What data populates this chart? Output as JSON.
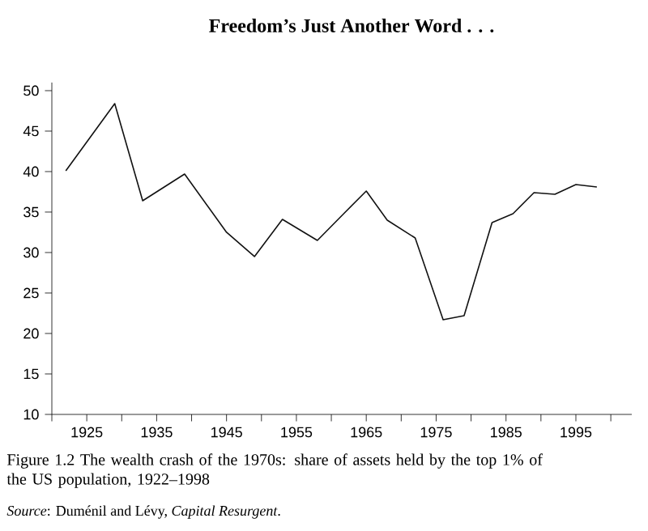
{
  "chart_data": {
    "type": "line",
    "title": "**Freedom’s Just Another Word . . .**",
    "x": [
      1922,
      1929,
      1933,
      1939,
      1945,
      1949,
      1953,
      1958,
      1962,
      1965,
      1968,
      1972,
      1976,
      1979,
      1983,
      1986,
      1989,
      1992,
      1995,
      1998
    ],
    "values": [
      40.1,
      48.4,
      36.4,
      39.7,
      32.5,
      29.5,
      34.1,
      31.5,
      35.0,
      37.6,
      34.0,
      31.8,
      21.7,
      22.2,
      33.7,
      34.8,
      37.4,
      37.2,
      38.4,
      38.1
    ],
    "color": "#111111",
    "line_style": "solid",
    "marker": "none",
    "grid": false,
    "xlim": [
      1920,
      2003
    ],
    "ylim": [
      10,
      51
    ],
    "xticks": [
      {
        "value": 1920,
        "label": null
      },
      1925,
      {
        "value": 1930,
        "label": null
      },
      1935,
      {
        "value": 1940,
        "label": null
      },
      1945,
      {
        "value": 1950,
        "label": null
      },
      1955,
      {
        "value": 1960,
        "label": null
      },
      1965,
      {
        "value": 1970,
        "label": null
      },
      1975,
      {
        "value": 1980,
        "label": null
      },
      1985,
      {
        "value": 1990,
        "label": null
      },
      1995,
      {
        "value": 2000,
        "label": null
      }
    ],
    "yticks": [
      10,
      15,
      20,
      25,
      30,
      35,
      40,
      45,
      50
    ],
    "annotations": [
      "Figure 1.2  The wealth crash of the 1970s: share of assets held by the top 1% of the US population, 1922–1998",
      "*Source*: Duménil and Lévy, *Capital Resurgent*."
    ]
  }
}
